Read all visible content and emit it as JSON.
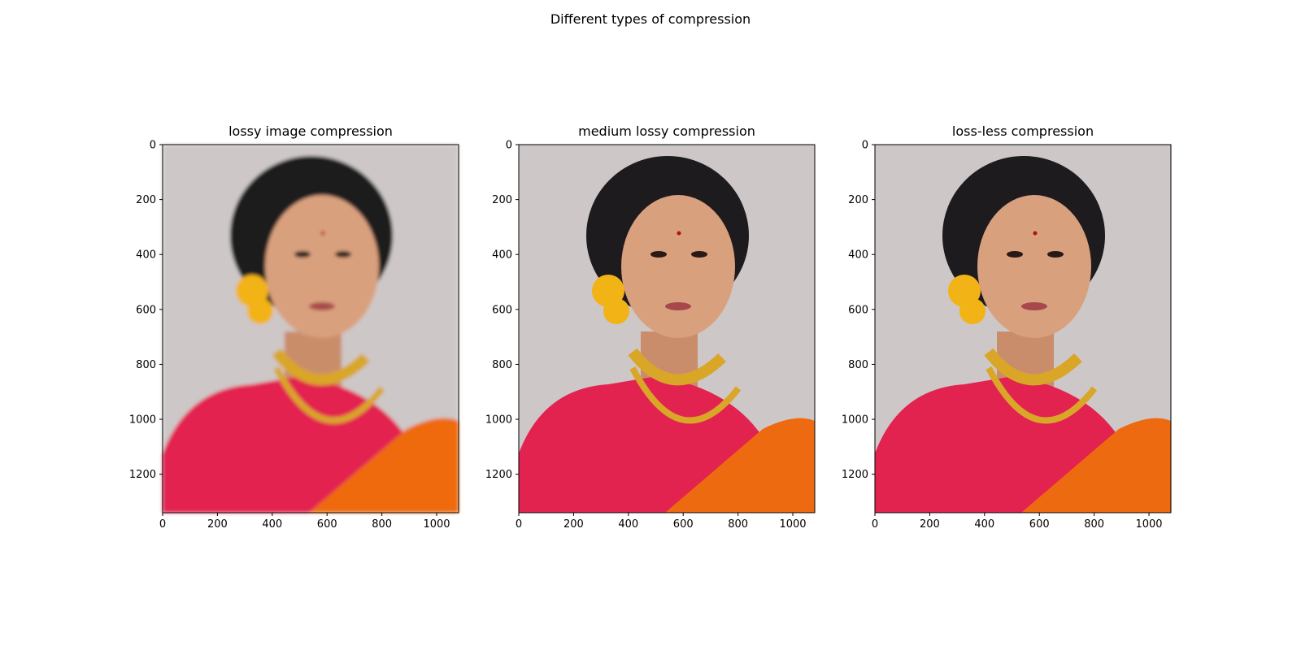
{
  "figure": {
    "suptitle": "Different types of compression"
  },
  "chart_data": [
    {
      "type": "image",
      "title": "lossy image compression",
      "xlabel": "",
      "ylabel": "",
      "xlim": [
        0,
        1080
      ],
      "ylim": [
        1340,
        0
      ],
      "x_ticks": [
        0,
        200,
        400,
        600,
        800,
        1000
      ],
      "y_ticks": [
        0,
        200,
        400,
        600,
        800,
        1000,
        1200
      ],
      "quality": "low"
    },
    {
      "type": "image",
      "title": "medium lossy compression",
      "xlabel": "",
      "ylabel": "",
      "xlim": [
        0,
        1080
      ],
      "ylim": [
        1340,
        0
      ],
      "x_ticks": [
        0,
        200,
        400,
        600,
        800,
        1000
      ],
      "y_ticks": [
        0,
        200,
        400,
        600,
        800,
        1000,
        1200
      ],
      "quality": "medium"
    },
    {
      "type": "image",
      "title": "loss-less compression",
      "xlabel": "",
      "ylabel": "",
      "xlim": [
        0,
        1080
      ],
      "ylim": [
        1340,
        0
      ],
      "x_ticks": [
        0,
        200,
        400,
        600,
        800,
        1000
      ],
      "y_ticks": [
        0,
        200,
        400,
        600,
        800,
        1000,
        1200
      ],
      "quality": "lossless"
    }
  ],
  "colors": {
    "background": "#cdc7c7",
    "hair": "#1d1b1e",
    "skin": "#d9a07e",
    "blouse": "#e3234f",
    "saree": "#ee6a10",
    "gold": "#d9a628",
    "flower": "#f2b316"
  }
}
